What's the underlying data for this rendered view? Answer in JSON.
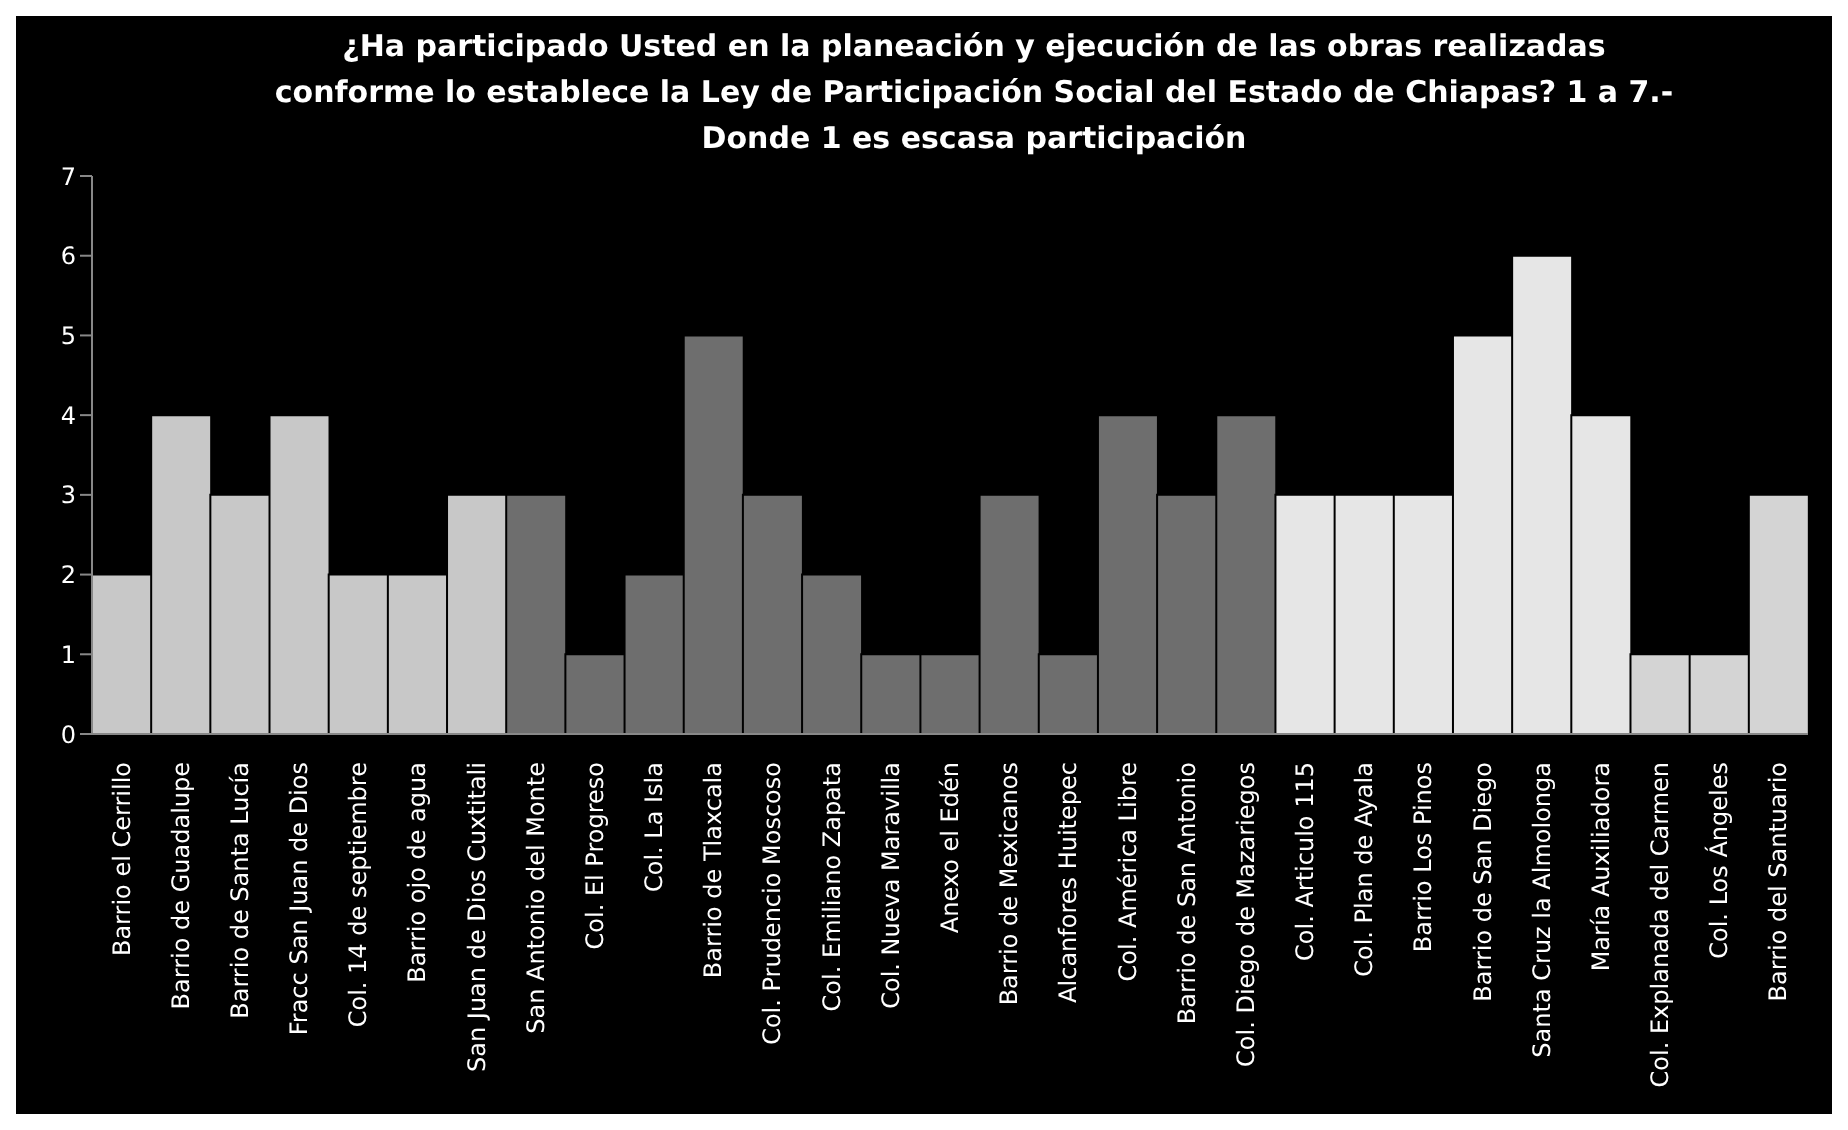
{
  "chart_data": {
    "type": "bar",
    "title": "¿Ha participado Usted en la planeación y ejecución de las obras realizadas\nconforme lo establece la Ley de Participación Social del Estado de Chiapas? 1 a 7.-\nDonde 1 es escasa participación",
    "categories": [
      "Barrio el Cerrillo",
      "Barrio de Guadalupe",
      "Barrio de Santa Lucía",
      "Fracc San Juan de Dios",
      "Col. 14 de septiembre",
      "Barrio ojo de agua",
      "San Juan de Dios Cuxtitali",
      "San Antonio del Monte",
      "Col. El Progreso",
      "Col. La Isla",
      "Barrio de Tlaxcala",
      "Col. Prudencio Moscoso",
      "Col. Emiliano Zapata",
      "Col. Nueva Maravilla",
      "Anexo el Edén",
      "Barrio de Mexicanos",
      "Alcanfores Huitepec",
      "Col. América Libre",
      "Barrio de San Antonio",
      "Col. Diego de Mazariegos",
      "Col. Articulo 115",
      "Col. Plan de Ayala",
      "Barrio Los Pinos",
      "Barrio de San Diego",
      "Santa Cruz la Almolonga",
      "María Auxiliadora",
      "Col. Explanada del Carmen",
      "Col. Los Ángeles",
      "Barrio del Santuario"
    ],
    "values": [
      2,
      4,
      3,
      4,
      2,
      2,
      3,
      3,
      1,
      2,
      5,
      3,
      2,
      1,
      1,
      3,
      1,
      4,
      3,
      4,
      3,
      3,
      3,
      5,
      6,
      4,
      1,
      1,
      3
    ],
    "colors": [
      "#c8c8c8",
      "#c8c8c8",
      "#c8c8c8",
      "#c8c8c8",
      "#c8c8c8",
      "#c8c8c8",
      "#c8c8c8",
      "#6e6e6e",
      "#6e6e6e",
      "#6e6e6e",
      "#6e6e6e",
      "#6e6e6e",
      "#6e6e6e",
      "#6e6e6e",
      "#6e6e6e",
      "#6e6e6e",
      "#6e6e6e",
      "#6e6e6e",
      "#6e6e6e",
      "#6e6e6e",
      "#e6e6e6",
      "#e6e6e6",
      "#e6e6e6",
      "#e6e6e6",
      "#e6e6e6",
      "#e6e6e6",
      "#d4d4d4",
      "#d4d4d4",
      "#d4d4d4"
    ],
    "ylim": [
      0,
      7
    ],
    "yticks": [
      0,
      1,
      2,
      3,
      4,
      5,
      6,
      7
    ],
    "grid": false,
    "legend": false
  }
}
